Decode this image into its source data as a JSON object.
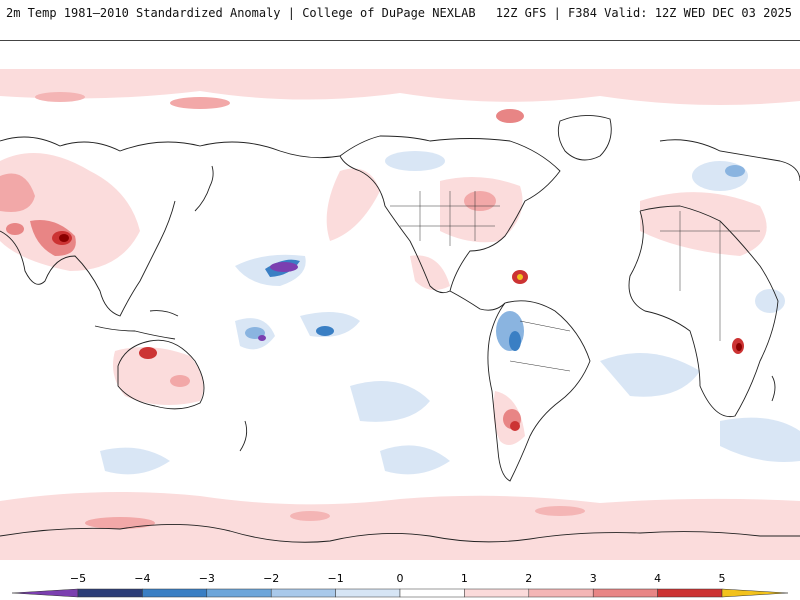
{
  "header": {
    "left_title": "2m Temp 1981–2010 Standardized Anomaly | College of DuPage NEXLAB",
    "right_title": "12Z GFS | F384 Valid: 12Z WED DEC 03 2025"
  },
  "colorbar": {
    "ticks": [
      "−5",
      "−4",
      "−3",
      "−2",
      "−1",
      "0",
      "1",
      "2",
      "3",
      "4",
      "5"
    ],
    "colors": [
      "#7b3fb0",
      "#2c3e78",
      "#3a7fc4",
      "#6da6da",
      "#a9c9ea",
      "#d6e5f5",
      "#ffffff",
      "#fbdada",
      "#f4b5b5",
      "#e88585",
      "#cc3333",
      "#8b0000",
      "#f2c21c"
    ]
  },
  "map": {
    "projection": "equirectangular global, Pacific-centered",
    "background": "#ffffff",
    "colors": {
      "warm_light": "#fbdcdc",
      "warm_mid": "#f2a8a8",
      "warm_strong": "#d23a3a",
      "warm_extreme": "#8b0000",
      "cold_light": "#d9e6f5",
      "cold_mid": "#8ab4e0",
      "cold_strong": "#3a7fc4",
      "cold_extreme": "#7b3fb0",
      "coast": "#222222"
    }
  }
}
